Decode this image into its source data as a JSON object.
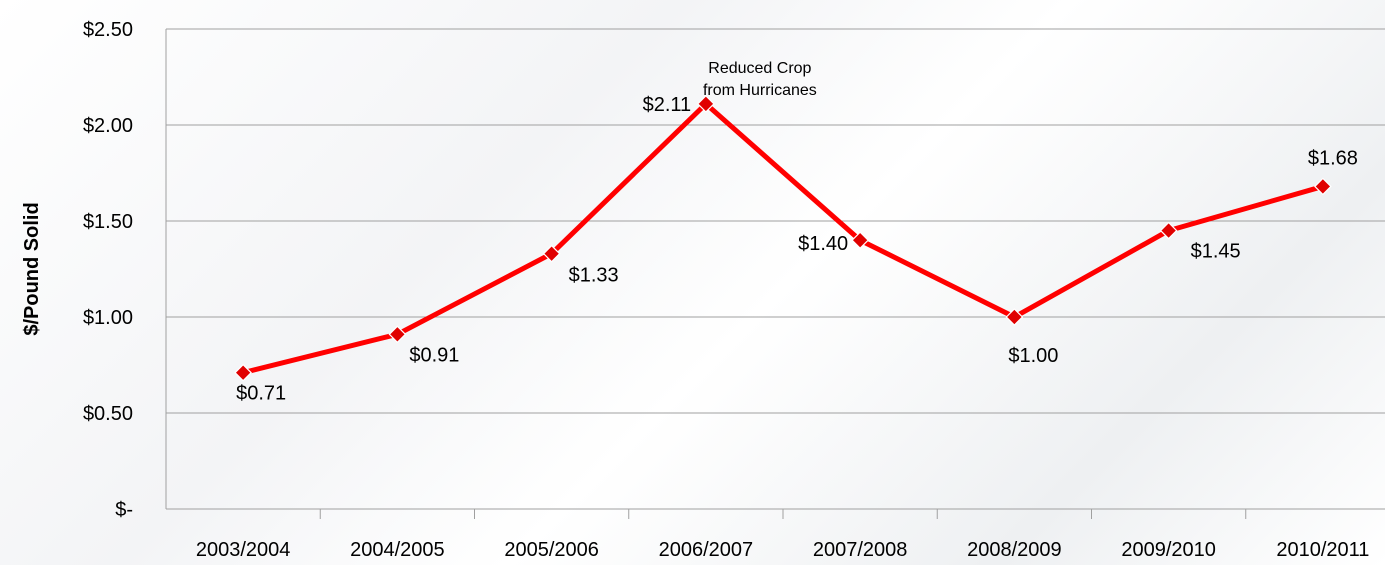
{
  "chart_data": {
    "type": "line",
    "categories": [
      "2003/2004",
      "2004/2005",
      "2005/2006",
      "2006/2007",
      "2007/2008",
      "2008/2009",
      "2009/2010",
      "2010/2011"
    ],
    "series": [
      {
        "values": [
          0.71,
          0.91,
          1.33,
          2.11,
          1.4,
          1.0,
          1.45,
          1.68
        ],
        "data_labels": [
          "$0.71",
          "$0.91",
          "$1.33",
          "$2.11",
          "$1.40",
          "$1.00",
          "$1.45",
          "$1.68"
        ],
        "color": "#ff0000",
        "marker": "diamond"
      }
    ],
    "ylabel": "$/Pound Solid",
    "xlabel": "",
    "ylim": [
      0,
      2.5
    ],
    "yticks": [
      0,
      0.5,
      1.0,
      1.5,
      2.0,
      2.5
    ],
    "ytick_labels": [
      "$-",
      "$0.50",
      "$1.00",
      "$1.50",
      "$2.00",
      "$2.50"
    ],
    "grid": "horizontal",
    "gridline_color": "#a0a0a0",
    "annotations": [
      {
        "category": "2006/2007",
        "lines": [
          "Reduced Crop",
          "from Hurricanes"
        ]
      }
    ]
  }
}
